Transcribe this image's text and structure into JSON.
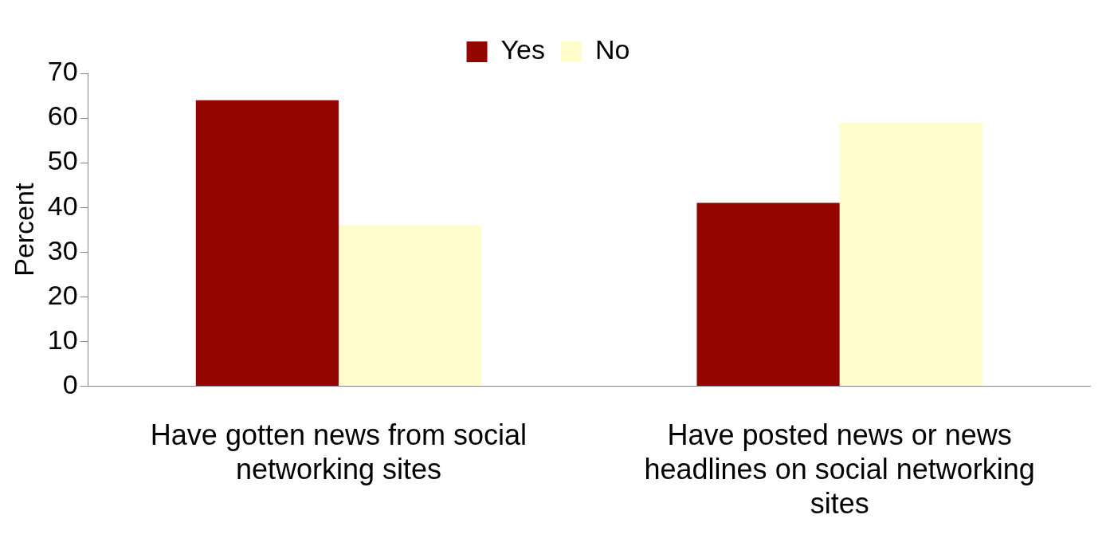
{
  "chart_data": {
    "type": "bar",
    "ylabel": "Percent",
    "categories": [
      "Have gotten news from social networking sites",
      "Have posted news or news headlines on social networking sites"
    ],
    "series": [
      {
        "name": "Yes",
        "color": "#930600",
        "values": [
          64,
          41
        ]
      },
      {
        "name": "No",
        "color": "#fffdcc",
        "values": [
          36,
          59
        ]
      }
    ],
    "ylim": [
      0,
      70
    ],
    "yticks": [
      0,
      10,
      20,
      30,
      40,
      50,
      60,
      70
    ],
    "grid": false,
    "legend": "top"
  }
}
